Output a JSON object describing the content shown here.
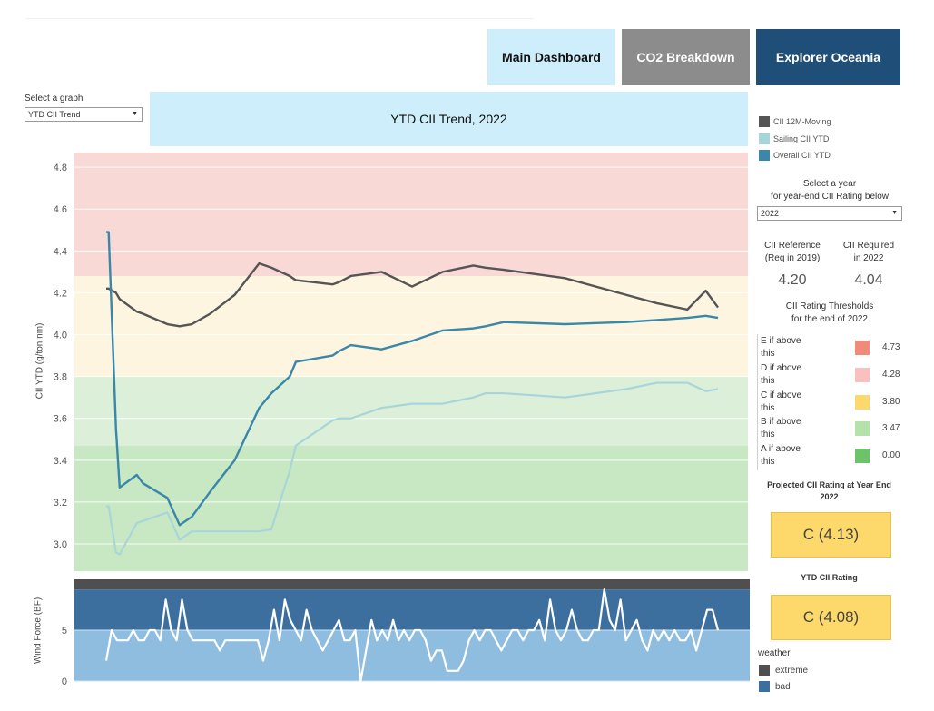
{
  "nav": {
    "main_label": "Main Dashboard",
    "co2_label": "CO2 Breakdown",
    "explorer_label": "Explorer Oceania"
  },
  "graph_select": {
    "label": "Select a graph",
    "value": "YTD CII Trend"
  },
  "title": "YTD CII Trend, 2022",
  "legend": [
    {
      "label": "CII 12M-Moving",
      "color": "#555555"
    },
    {
      "label": "Sailing CII YTD",
      "color": "#a8d5da"
    },
    {
      "label": "Overall CII YTD",
      "color": "#3a87a8"
    }
  ],
  "year_select": {
    "label_line1": "Select a year",
    "label_line2": "for year-end CII Rating below",
    "value": "2022"
  },
  "reference": {
    "label_line1": "CII Reference",
    "label_line2": "(Req in 2019)",
    "value": "4.20"
  },
  "required": {
    "label_line1": "CII Required",
    "label_line2": "in 2022",
    "value": "4.04"
  },
  "thresholds": {
    "title_line1": "CII Rating Thresholds",
    "title_line2": "for the end of 2022",
    "rows": [
      {
        "label_line1": "E if above",
        "label_line2": "this",
        "color": "#f08a7a",
        "value": "4.73"
      },
      {
        "label_line1": "D if above",
        "label_line2": "this",
        "color": "#f9c0c0",
        "value": "4.28"
      },
      {
        "label_line1": "C if above",
        "label_line2": "this",
        "color": "#fcd96a",
        "value": "3.80"
      },
      {
        "label_line1": "B if above",
        "label_line2": "this",
        "color": "#b5e2ab",
        "value": "3.47"
      },
      {
        "label_line1": "A if above",
        "label_line2": "this",
        "color": "#6cc36a",
        "value": "0.00"
      }
    ]
  },
  "projected": {
    "title_line1": "Projected CII Rating at Year End",
    "title_line2": "2022",
    "value": "C (4.13)"
  },
  "ytd_rating": {
    "title": "YTD CII Rating",
    "value": "C (4.08)"
  },
  "weather": {
    "title": "weather",
    "items": [
      {
        "label": "extreme",
        "color": "#4f4f4f"
      },
      {
        "label": "bad",
        "color": "#3c6e9e"
      }
    ]
  },
  "chart_data": [
    {
      "type": "line",
      "ylabel": "CII YTD (g/ton nm)",
      "ylim": [
        2.87,
        4.87
      ],
      "yticks": [
        "4.8",
        "4.6",
        "4.4",
        "4.2",
        "4.0",
        "3.8",
        "3.6",
        "3.4",
        "3.2",
        "3.0"
      ],
      "grid": true,
      "bands": [
        {
          "from": 4.28,
          "to": 4.87,
          "color": "#f9d9d6"
        },
        {
          "from": 3.8,
          "to": 4.28,
          "color": "#fdf5e0"
        },
        {
          "from": 3.47,
          "to": 3.8,
          "color": "#dcefd9"
        },
        {
          "from": 2.87,
          "to": 3.47,
          "color": "#c8e8c4"
        }
      ],
      "x": [
        0,
        0.4,
        1.6,
        2.2,
        5,
        6,
        10,
        12,
        14,
        17,
        21,
        25,
        27,
        30,
        31,
        37,
        38,
        40,
        45,
        50,
        55,
        60,
        62,
        65,
        75,
        85,
        90,
        95,
        98,
        100
      ],
      "series": [
        {
          "name": "CII 12M-Moving",
          "color": "#555555",
          "values": [
            4.22,
            4.22,
            4.2,
            4.17,
            4.11,
            4.1,
            4.05,
            4.04,
            4.05,
            4.1,
            4.19,
            4.34,
            4.32,
            4.28,
            4.26,
            4.24,
            4.25,
            4.28,
            4.3,
            4.23,
            4.3,
            4.33,
            4.32,
            4.31,
            4.27,
            4.19,
            4.15,
            4.12,
            4.21,
            4.13
          ]
        },
        {
          "name": "Sailing CII YTD",
          "color": "#a8d5da",
          "values": [
            3.18,
            3.18,
            2.96,
            2.95,
            3.1,
            3.11,
            3.15,
            3.02,
            3.06,
            3.06,
            3.06,
            3.06,
            3.07,
            3.35,
            3.47,
            3.59,
            3.6,
            3.6,
            3.65,
            3.67,
            3.67,
            3.7,
            3.72,
            3.72,
            3.7,
            3.74,
            3.77,
            3.77,
            3.73,
            3.74
          ]
        },
        {
          "name": "Overall CII YTD",
          "color": "#3a87a8",
          "values": [
            4.49,
            4.49,
            3.55,
            3.27,
            3.33,
            3.29,
            3.22,
            3.09,
            3.13,
            3.25,
            3.4,
            3.65,
            3.72,
            3.8,
            3.87,
            3.9,
            3.92,
            3.95,
            3.93,
            3.97,
            4.02,
            4.03,
            4.04,
            4.06,
            4.05,
            4.06,
            4.07,
            4.08,
            4.09,
            4.08
          ]
        }
      ]
    },
    {
      "type": "line",
      "ylabel": "Wind Force (BF)",
      "ylim": [
        0,
        10
      ],
      "yticks": [
        "5",
        "0"
      ],
      "bands": [
        {
          "from": 9,
          "to": 10,
          "color": "#4f4f4f"
        },
        {
          "from": 5,
          "to": 9,
          "color": "#3c6e9e"
        },
        {
          "from": 0,
          "to": 5,
          "color": "#8fbde0"
        }
      ],
      "series": [
        {
          "name": "",
          "color": "#ffffff",
          "values": [
            2,
            5,
            4,
            4,
            4,
            5,
            4,
            4,
            5,
            5,
            4,
            8,
            5,
            4,
            8,
            5,
            4,
            4,
            4,
            4,
            4,
            3,
            4,
            4,
            4,
            4,
            4,
            4,
            4,
            2,
            4,
            7,
            4,
            8,
            6,
            5,
            4,
            7,
            5,
            4,
            3,
            4,
            5,
            6,
            4,
            4,
            5,
            0,
            3,
            6,
            4,
            5,
            4,
            6,
            4,
            5,
            4,
            5,
            5,
            4,
            2,
            3,
            3,
            1,
            1,
            1,
            2,
            4,
            5,
            4,
            5,
            5,
            4,
            3,
            4,
            5,
            5,
            4,
            5,
            5,
            6,
            4,
            8,
            5,
            4,
            5,
            7,
            5,
            4,
            4,
            5,
            5,
            9,
            6,
            5,
            8,
            4,
            5,
            6,
            4,
            3,
            5,
            4,
            5,
            4,
            5,
            4,
            4,
            5,
            3,
            5,
            7,
            7,
            5
          ]
        }
      ]
    }
  ]
}
